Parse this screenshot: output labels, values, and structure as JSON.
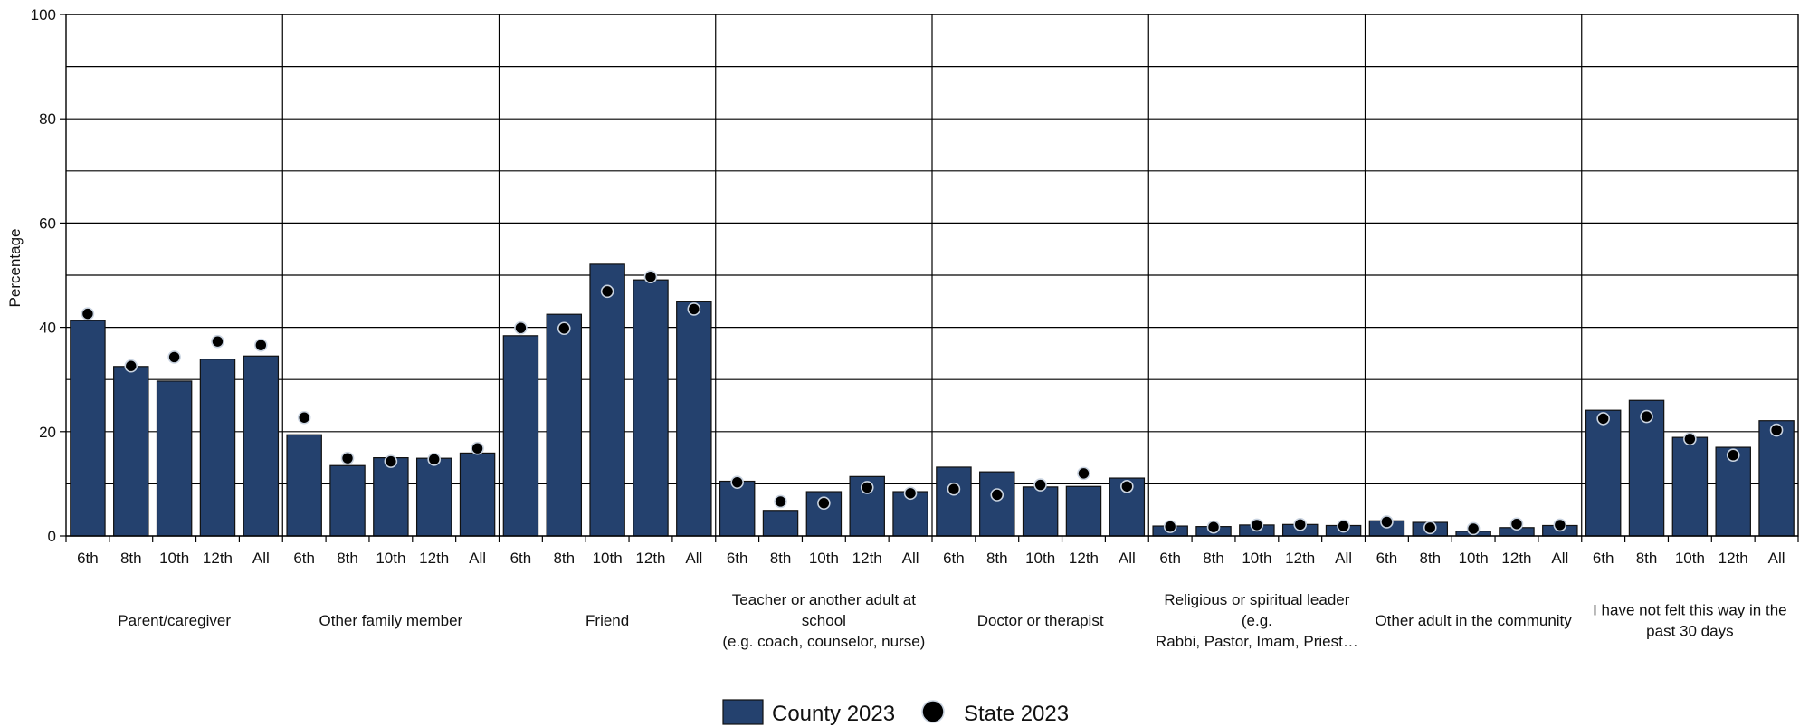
{
  "chart_data": {
    "type": "bar",
    "ylabel": "Percentage",
    "ylim": [
      0,
      100
    ],
    "yticks": [
      "0",
      "20",
      "40",
      "60",
      "80",
      "100"
    ],
    "grid": true,
    "legend_position": "bottom-center",
    "colors": {
      "county": "#24416e",
      "state": "#000000",
      "point_outline": "#c9d3e0"
    },
    "sub_categories": [
      "6th",
      "8th",
      "10th",
      "12th",
      "All"
    ],
    "groups": [
      {
        "label_lines": [
          "Parent/caregiver"
        ],
        "county": [
          41.3,
          32.5,
          29.7,
          33.9,
          34.5
        ],
        "state": [
          42.6,
          32.6,
          34.3,
          37.3,
          36.6
        ]
      },
      {
        "label_lines": [
          "Other family member"
        ],
        "county": [
          19.4,
          13.5,
          15.0,
          14.9,
          15.9
        ],
        "state": [
          22.7,
          14.9,
          14.3,
          14.7,
          16.8
        ]
      },
      {
        "label_lines": [
          "Friend"
        ],
        "county": [
          38.4,
          42.5,
          52.1,
          49.1,
          44.9
        ],
        "state": [
          39.9,
          39.8,
          46.9,
          49.7,
          43.5
        ]
      },
      {
        "label_lines": [
          "Teacher or another adult at",
          "school",
          "(e.g. coach, counselor, nurse)"
        ],
        "county": [
          10.5,
          4.9,
          8.5,
          11.4,
          8.5
        ],
        "state": [
          10.3,
          6.6,
          6.3,
          9.3,
          8.2
        ]
      },
      {
        "label_lines": [
          "Doctor or therapist"
        ],
        "county": [
          13.2,
          12.3,
          9.4,
          9.5,
          11.1
        ],
        "state": [
          9.0,
          7.9,
          9.8,
          12.0,
          9.5
        ]
      },
      {
        "label_lines": [
          "Religious or spiritual leader",
          "(e.g.",
          "Rabbi, Pastor, Imam, Priest…"
        ],
        "county": [
          1.9,
          1.8,
          2.1,
          2.2,
          2.0
        ],
        "state": [
          1.8,
          1.7,
          2.1,
          2.2,
          1.9
        ]
      },
      {
        "label_lines": [
          "Other adult in the community"
        ],
        "county": [
          2.9,
          2.6,
          0.9,
          1.6,
          2.0
        ],
        "state": [
          2.7,
          1.6,
          1.4,
          2.3,
          2.1
        ]
      },
      {
        "label_lines": [
          "I have not felt this way in the",
          "past 30 days"
        ],
        "county": [
          24.1,
          26.0,
          18.9,
          17.0,
          22.1
        ],
        "state": [
          22.5,
          22.9,
          18.6,
          15.5,
          20.3
        ]
      }
    ],
    "series": [
      {
        "name": "County 2023",
        "kind": "bar"
      },
      {
        "name": "State 2023",
        "kind": "point"
      }
    ]
  }
}
